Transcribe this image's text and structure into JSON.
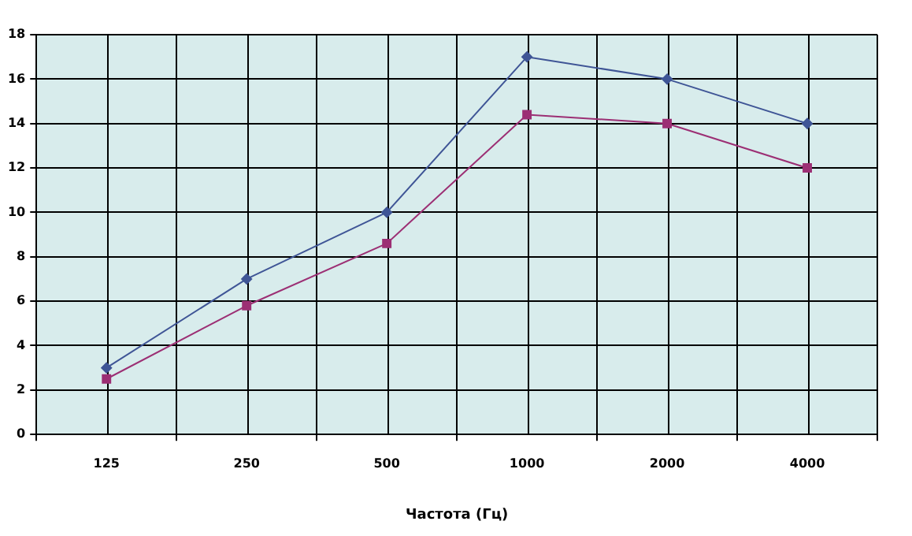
{
  "chart_data": {
    "type": "line",
    "xlabel": "Частота (Гц)",
    "categories": [
      "125",
      "250",
      "500",
      "1000",
      "2000",
      "4000"
    ],
    "series": [
      {
        "color": "#3f5596",
        "marker": "diamond",
        "values": [
          3,
          7,
          10,
          17,
          16,
          14
        ]
      },
      {
        "color": "#9c2f74",
        "marker": "square",
        "values": [
          2.5,
          5.8,
          8.6,
          14.4,
          14,
          12
        ]
      }
    ],
    "ylim": [
      0,
      18
    ],
    "yticks": [
      0,
      2,
      4,
      6,
      8,
      10,
      12,
      14,
      16,
      18
    ],
    "grid": true,
    "legend": false,
    "line_style": "solid"
  }
}
